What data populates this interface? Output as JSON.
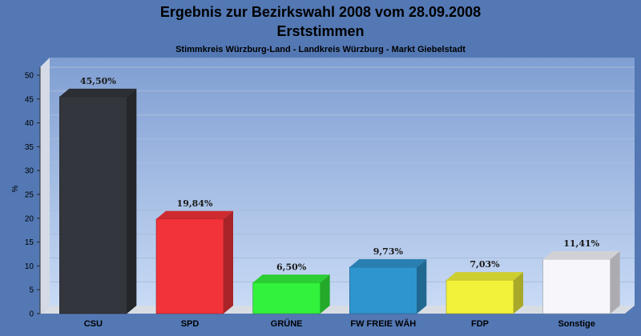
{
  "chart_data": {
    "type": "bar",
    "title": "Ergebnis zur Bezirkswahl 2008 vom 28.09.2008",
    "subtitle": "Erststimmen",
    "caption": "Stimmkreis Würzburg-Land - Landkreis Würzburg - Markt Giebelstadt",
    "ylabel": "%",
    "xlabel": "",
    "ylim": [
      0,
      50
    ],
    "yticks": [
      0,
      5,
      10,
      15,
      20,
      25,
      30,
      35,
      40,
      45,
      50
    ],
    "grid": true,
    "categories": [
      "CSU",
      "SPD",
      "GRÜNE",
      "FW FREIE WÄH",
      "FDP",
      "Sonstige"
    ],
    "values": [
      45.5,
      19.84,
      6.5,
      9.73,
      7.03,
      11.41
    ],
    "value_labels": [
      "45,50%",
      "19,84%",
      "6,50%",
      "9,73%",
      "7,03%",
      "11,41%"
    ],
    "colors": [
      "#33363c",
      "#f2333a",
      "#33f23c",
      "#2f95cf",
      "#f2f23a",
      "#f6f6fb"
    ],
    "background": "#5378b4"
  }
}
